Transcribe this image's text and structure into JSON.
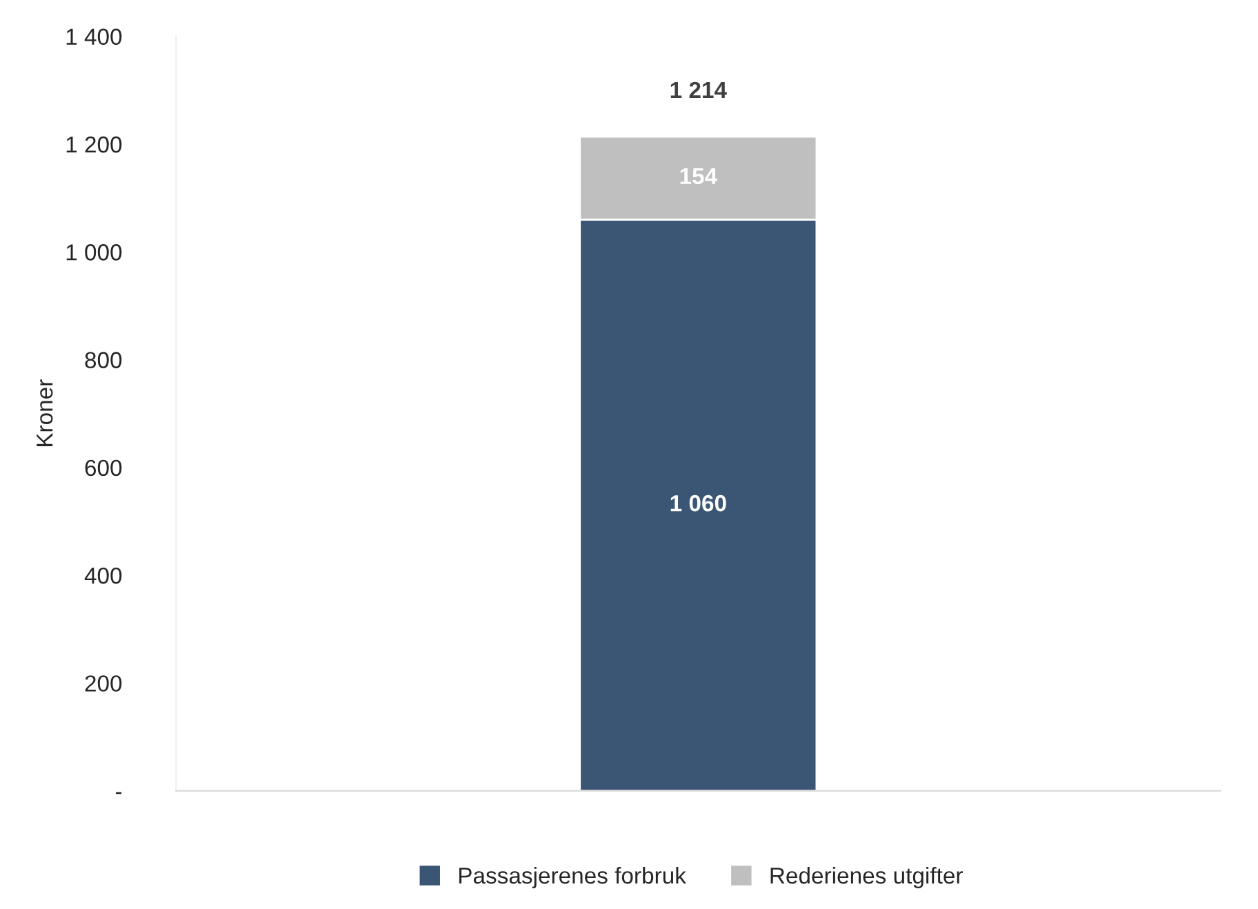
{
  "chart_data": {
    "type": "bar",
    "ylabel": "Kroner",
    "categories": [
      null
    ],
    "stacked": true,
    "series": [
      {
        "name": "Passasjerenes forbruk",
        "color": "#3a5674",
        "values": [
          1060
        ],
        "value_labels": [
          "1 060"
        ]
      },
      {
        "name": "Rederienes utgifter",
        "color": "#bfbfbf",
        "values": [
          154
        ],
        "value_labels": [
          "154"
        ]
      }
    ],
    "totals": [
      "1 214"
    ],
    "ylim": [
      0,
      1400
    ],
    "yticks": [
      {
        "value": 0,
        "label": "-"
      },
      200,
      400,
      600,
      800,
      {
        "value": 1000,
        "label": "1 000"
      },
      {
        "value": 1200,
        "label": "1 200"
      },
      {
        "value": 1400,
        "label": "1 400"
      }
    ],
    "legend": "bottom"
  }
}
